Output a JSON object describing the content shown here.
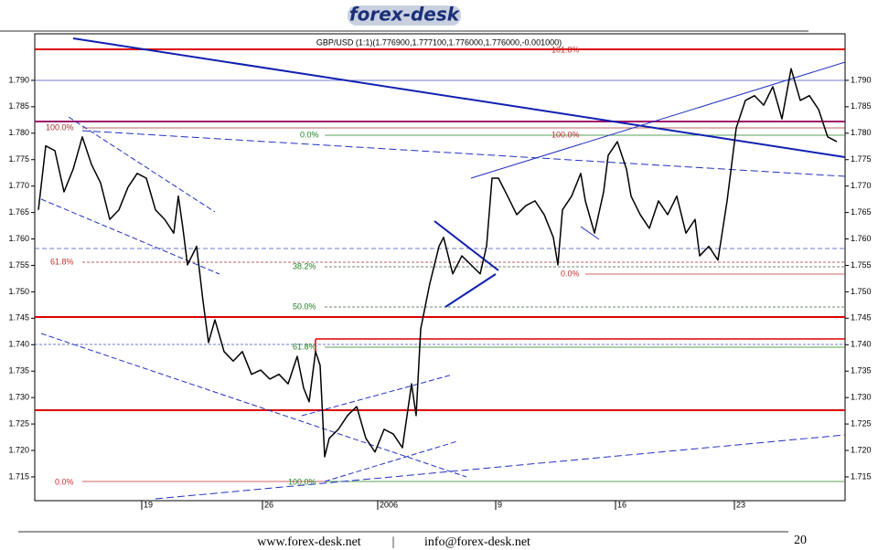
{
  "header": {
    "logo": "forex-desk"
  },
  "chart_data": {
    "type": "line",
    "title": "GBP/USD (1:1)(1.776900,1.777100,1.776000,1.776000,-0.001000)",
    "x": [
      0.5,
      1.5,
      2.75,
      4,
      5.25,
      6.5,
      7.75,
      9,
      10.25,
      11.5,
      12.75,
      14,
      15.25,
      16.5,
      17.75,
      19,
      19.625,
      20.25,
      20.875,
      22.125,
      23,
      23.75,
      24.625,
      25.875,
      27.125,
      28.375,
      29.625,
      30.875,
      32.125,
      33.375,
      34.625,
      35.875,
      36.75,
      37.5,
      38.375,
      39,
      39.625,
      40.25,
      41.5,
      42.75,
      44,
      45.25,
      46.5,
      47.75,
      49,
      50.25,
      51.5,
      52.125,
      52.75,
      54,
      55.25,
      55.875,
      57.125,
      58.375,
      59.625,
      60.875,
      61.75,
      62.5,
      63.375,
      64.625,
      65.875,
      67.125,
      68.375,
      69.625,
      70.875,
      71.5,
      72.125,
      73.375,
      74.625,
      75.25,
      76.5,
      77.75,
      78.375,
      79.625,
      80.875,
      81.5,
      82.75,
      84,
      85.25,
      86.5,
      87.75,
      89,
      90.25,
      90.875,
      92.125,
      93.375,
      94.625,
      95.25,
      95.875,
      97.125,
      98.375,
      99.625,
      100.875,
      102.125,
      103.375,
      104.625,
      105.875,
      107.125,
      108.375,
      109.625
    ],
    "values": [
      1.7655,
      1.7776,
      1.7767,
      1.7689,
      1.7732,
      1.7793,
      1.7741,
      1.7706,
      1.7637,
      1.7655,
      1.7698,
      1.7724,
      1.7715,
      1.7655,
      1.7637,
      1.7611,
      1.7681,
      1.762,
      1.7551,
      1.7586,
      1.7482,
      1.7404,
      1.7447,
      1.7387,
      1.7369,
      1.7387,
      1.7344,
      1.7352,
      1.7335,
      1.7344,
      1.7326,
      1.7378,
      1.7318,
      1.7292,
      1.7387,
      1.7361,
      1.7188,
      1.7223,
      1.724,
      1.7266,
      1.7283,
      1.7223,
      1.7197,
      1.724,
      1.7231,
      1.7205,
      1.7326,
      1.7266,
      1.743,
      1.7516,
      1.7586,
      1.7603,
      1.7534,
      1.7568,
      1.7551,
      1.7534,
      1.7586,
      1.7715,
      1.7715,
      1.7681,
      1.7646,
      1.7663,
      1.7672,
      1.7646,
      1.7603,
      1.7551,
      1.7655,
      1.7681,
      1.7724,
      1.7672,
      1.7611,
      1.7689,
      1.7758,
      1.7784,
      1.7732,
      1.7681,
      1.7646,
      1.762,
      1.7672,
      1.7646,
      1.7681,
      1.7611,
      1.7637,
      1.7568,
      1.7586,
      1.756,
      1.7672,
      1.7741,
      1.781,
      1.7862,
      1.7871,
      1.7853,
      1.7888,
      1.7827,
      1.7922,
      1.7862,
      1.7871,
      1.7845,
      1.7793,
      1.7784
    ],
    "color": "#000000",
    "xlim": [
      0,
      110.75
    ],
    "xticks": [
      {
        "value": 14.625,
        "label": "19"
      },
      {
        "value": 31.125,
        "label": "26"
      },
      {
        "value": 46.875,
        "label": "2006"
      },
      {
        "value": 63,
        "label": "9"
      },
      {
        "value": 79.375,
        "label": "16"
      },
      {
        "value": 95.625,
        "label": "23"
      }
    ],
    "ylim": [
      1.7105,
      1.7988
    ],
    "yticks": [
      {
        "value": 1.715,
        "label": "1.715"
      },
      {
        "value": 1.72,
        "label": "1.720"
      },
      {
        "value": 1.725,
        "label": "1.725"
      },
      {
        "value": 1.73,
        "label": "1.730"
      },
      {
        "value": 1.735,
        "label": "1.735"
      },
      {
        "value": 1.74,
        "label": "1.740"
      },
      {
        "value": 1.745,
        "label": "1.745"
      },
      {
        "value": 1.75,
        "label": "1.750"
      },
      {
        "value": 1.755,
        "label": "1.755"
      },
      {
        "value": 1.76,
        "label": "1.760"
      },
      {
        "value": 1.765,
        "label": "1.765"
      },
      {
        "value": 1.77,
        "label": "1.770"
      },
      {
        "value": 1.775,
        "label": "1.775"
      },
      {
        "value": 1.78,
        "label": "1.780"
      },
      {
        "value": 1.785,
        "label": "1.785"
      },
      {
        "value": 1.79,
        "label": "1.790"
      }
    ],
    "annotations": [
      "101.8%",
      "100.0%",
      "61.8%",
      "0.0%",
      "0.0%",
      "38.2%",
      "50.0%",
      "61.8%",
      "100.0%",
      "100.0%",
      "0.0%"
    ]
  },
  "footer": {
    "website": "www.forex-desk.net",
    "separator": "|",
    "email": "info@forex-desk.net",
    "page": "20"
  }
}
